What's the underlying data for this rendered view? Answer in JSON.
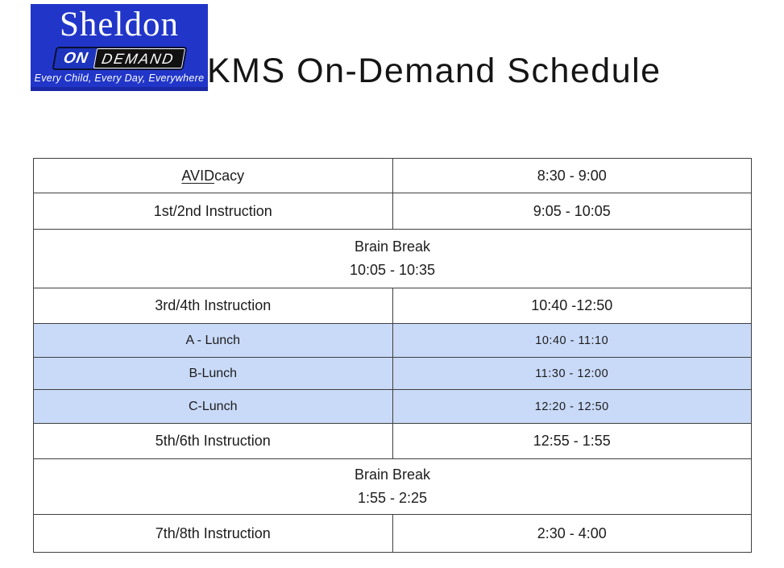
{
  "logo": {
    "school": "Sheldon",
    "badge_on": "ON",
    "badge_demand": "DEMAND",
    "tagline": "Every Child, Every Day, Everywhere"
  },
  "title": "KMS On-Demand Schedule",
  "colors": {
    "logo-blue": "#2136c9",
    "logo-strip": "#1a28a5",
    "badge-on-blue": "#1d34bd",
    "badge-black": "#111111",
    "lunch-bg": "#c9daf8",
    "table-border": "#3f3f3f",
    "text": "#1c1c1c"
  },
  "table": {
    "rows": [
      {
        "label_underlined": "AVID",
        "label_rest": "cacy",
        "time": "8:30 - 9:00",
        "style": "normal"
      },
      {
        "label": "1st/2nd Instruction",
        "time": "9:05 - 10:05",
        "style": "normal"
      },
      {
        "label": "Brain Break",
        "time": "10:05 - 10:35",
        "style": "merged"
      },
      {
        "label": "3rd/4th Instruction",
        "time": "10:40 -12:50",
        "style": "normal"
      },
      {
        "label": "A - Lunch",
        "time": "10:40 - 11:10",
        "style": "lunch"
      },
      {
        "label": "B-Lunch",
        "time": "11:30 - 12:00",
        "style": "lunch"
      },
      {
        "label": "C-Lunch",
        "time": "12:20 - 12:50",
        "style": "lunch"
      },
      {
        "label": "5th/6th Instruction",
        "time": "12:55 - 1:55",
        "style": "normal"
      },
      {
        "label": "Brain Break",
        "time": "1:55 - 2:25",
        "style": "merged"
      },
      {
        "label": "7th/8th Instruction",
        "time": "2:30 - 4:00",
        "style": "normal"
      }
    ]
  }
}
